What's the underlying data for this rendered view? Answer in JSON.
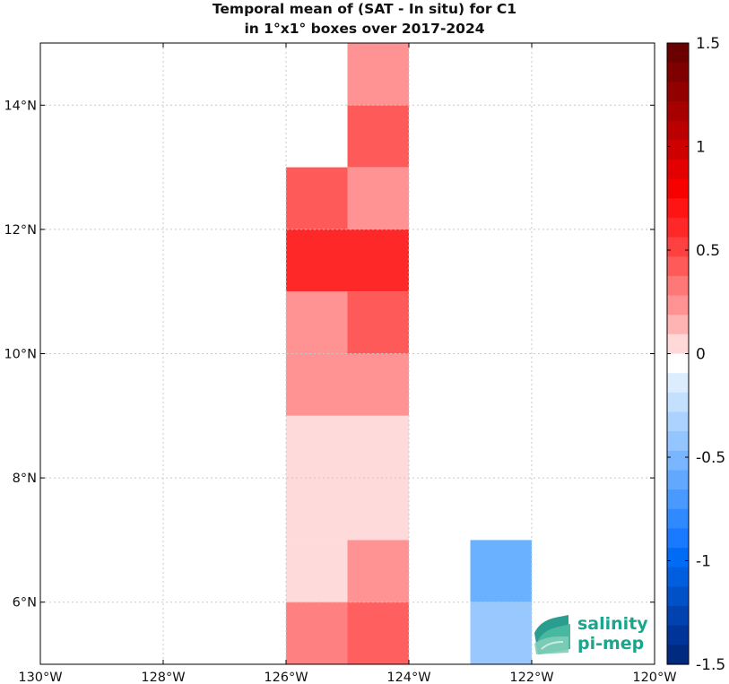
{
  "title_line1": "Temporal mean of (SAT - In situ) for C1",
  "title_line2": "in 1°x1° boxes over 2017-2024",
  "logo": {
    "line1": "salinity",
    "line2": "pi-mep",
    "icon": "wave-logo-icon"
  },
  "chart_data": {
    "type": "heatmap",
    "title": "Temporal mean of (SAT - In situ) for C1 in 1°x1° boxes over 2017-2024",
    "xlim": [
      -130,
      -120
    ],
    "ylim": [
      5,
      15
    ],
    "grid": true,
    "x_ticks": [
      -130,
      -128,
      -126,
      -124,
      -122,
      -120
    ],
    "x_tick_labels": [
      "130°W",
      "128°W",
      "126°W",
      "124°W",
      "122°W",
      "120°W"
    ],
    "y_ticks": [
      6,
      8,
      10,
      12,
      14
    ],
    "y_tick_labels": [
      "6°N",
      "8°N",
      "10°N",
      "12°N",
      "14°N"
    ],
    "colorbar": {
      "range": [
        -1.5,
        1.5
      ],
      "levels": 32,
      "ticks": [
        1.5,
        1,
        0.5,
        0,
        -0.5,
        -1,
        -1.5
      ],
      "tick_labels": [
        "1.5",
        "1",
        "0.5",
        "0",
        "-0.5",
        "-1",
        "-1.5"
      ],
      "colors_high_to_low": [
        "#6b0000",
        "#7f0000",
        "#920000",
        "#a60000",
        "#ba0000",
        "#ce0000",
        "#e20000",
        "#f60000",
        "#ff1414",
        "#ff2828",
        "#ff4040",
        "#ff5a5a",
        "#ff7878",
        "#ff9292",
        "#ffb4b4",
        "#ffd8d8",
        "#ffffff",
        "#dcedff",
        "#c4e0ff",
        "#acd3ff",
        "#93c5ff",
        "#7ab6ff",
        "#62a8ff",
        "#4a99ff",
        "#2f89ff",
        "#1a7aff",
        "#006cf6",
        "#005edf",
        "#0050c8",
        "#0042b0",
        "#003498",
        "#002a80"
      ]
    },
    "cells": [
      {
        "lon": -125,
        "lat": 14,
        "value": 0.35,
        "color": "#ff9292"
      },
      {
        "lon": -125,
        "lat": 13,
        "value": 0.5,
        "color": "#ff5a5a"
      },
      {
        "lon": -126,
        "lat": 12,
        "value": 0.5,
        "color": "#ff5a5a"
      },
      {
        "lon": -125,
        "lat": 12,
        "value": 0.35,
        "color": "#ff9292"
      },
      {
        "lon": -126,
        "lat": 11,
        "value": 0.7,
        "color": "#ff2828"
      },
      {
        "lon": -125,
        "lat": 11,
        "value": 0.7,
        "color": "#ff2828"
      },
      {
        "lon": -126,
        "lat": 10,
        "value": 0.35,
        "color": "#ff9292"
      },
      {
        "lon": -125,
        "lat": 10,
        "value": 0.5,
        "color": "#ff5a5a"
      },
      {
        "lon": -126,
        "lat": 9,
        "value": 0.35,
        "color": "#ff9292"
      },
      {
        "lon": -125,
        "lat": 9,
        "value": 0.35,
        "color": "#ff9292"
      },
      {
        "lon": -126,
        "lat": 8,
        "value": 0.1,
        "color": "#ffdada"
      },
      {
        "lon": -125,
        "lat": 8,
        "value": 0.1,
        "color": "#ffdada"
      },
      {
        "lon": -126,
        "lat": 7,
        "value": 0.1,
        "color": "#ffdada"
      },
      {
        "lon": -125,
        "lat": 7,
        "value": 0.1,
        "color": "#ffdada"
      },
      {
        "lon": -126,
        "lat": 6,
        "value": 0.1,
        "color": "#ffdada"
      },
      {
        "lon": -125,
        "lat": 6,
        "value": 0.35,
        "color": "#ff9292"
      },
      {
        "lon": -123,
        "lat": 6,
        "value": -0.4,
        "color": "#6ab2ff"
      },
      {
        "lon": -126,
        "lat": 5,
        "value": 0.4,
        "color": "#ff8080"
      },
      {
        "lon": -125,
        "lat": 5,
        "value": 0.5,
        "color": "#ff5f5f"
      },
      {
        "lon": -123,
        "lat": 5,
        "value": -0.25,
        "color": "#99c8ff"
      }
    ]
  }
}
